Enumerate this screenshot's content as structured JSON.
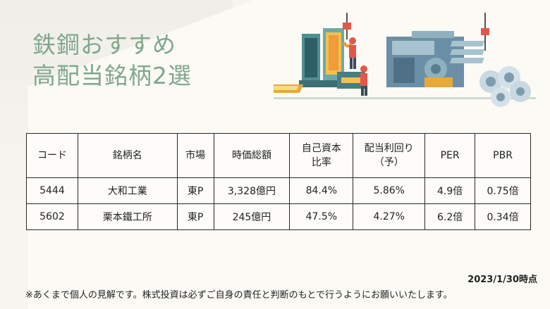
{
  "title": {
    "line1": "鉄鋼おすすめ",
    "line2": "高配当銘柄2選"
  },
  "table": {
    "headers": [
      "コード",
      "銘柄名",
      "市場",
      "時価総額",
      "自己資本比率",
      "配当利回り（予）",
      "PER",
      "PBR"
    ],
    "header_lines": [
      [
        "コード"
      ],
      [
        "銘柄名"
      ],
      [
        "市場"
      ],
      [
        "時価総額"
      ],
      [
        "自己資本",
        "比率"
      ],
      [
        "配当利回り",
        "（予）"
      ],
      [
        "PER"
      ],
      [
        "PBR"
      ]
    ],
    "rows": [
      [
        "5444",
        "大和工業",
        "東P",
        "3,328億円",
        "84.4%",
        "5.86%",
        "4.9倍",
        "0.75倍"
      ],
      [
        "5602",
        "栗本鐵工所",
        "東P",
        "245億円",
        "47.5%",
        "4.27%",
        "6.2倍",
        "0.34倍"
      ]
    ]
  },
  "as_of": "2023/1/30時点",
  "disclaimer": "※あくまで個人の見解です。株式投資は必ずご自身の責任と判断のもとで行うようにお願いいたします。",
  "colors": {
    "title": "#7fa88c",
    "background": "#f6f4ee",
    "machine_teal": "#4f8f93",
    "machine_blue": "#6b8fa6",
    "accent_orange": "#f29b38",
    "accent_red": "#e2574c"
  },
  "illustration": "steel-factory-illustration"
}
